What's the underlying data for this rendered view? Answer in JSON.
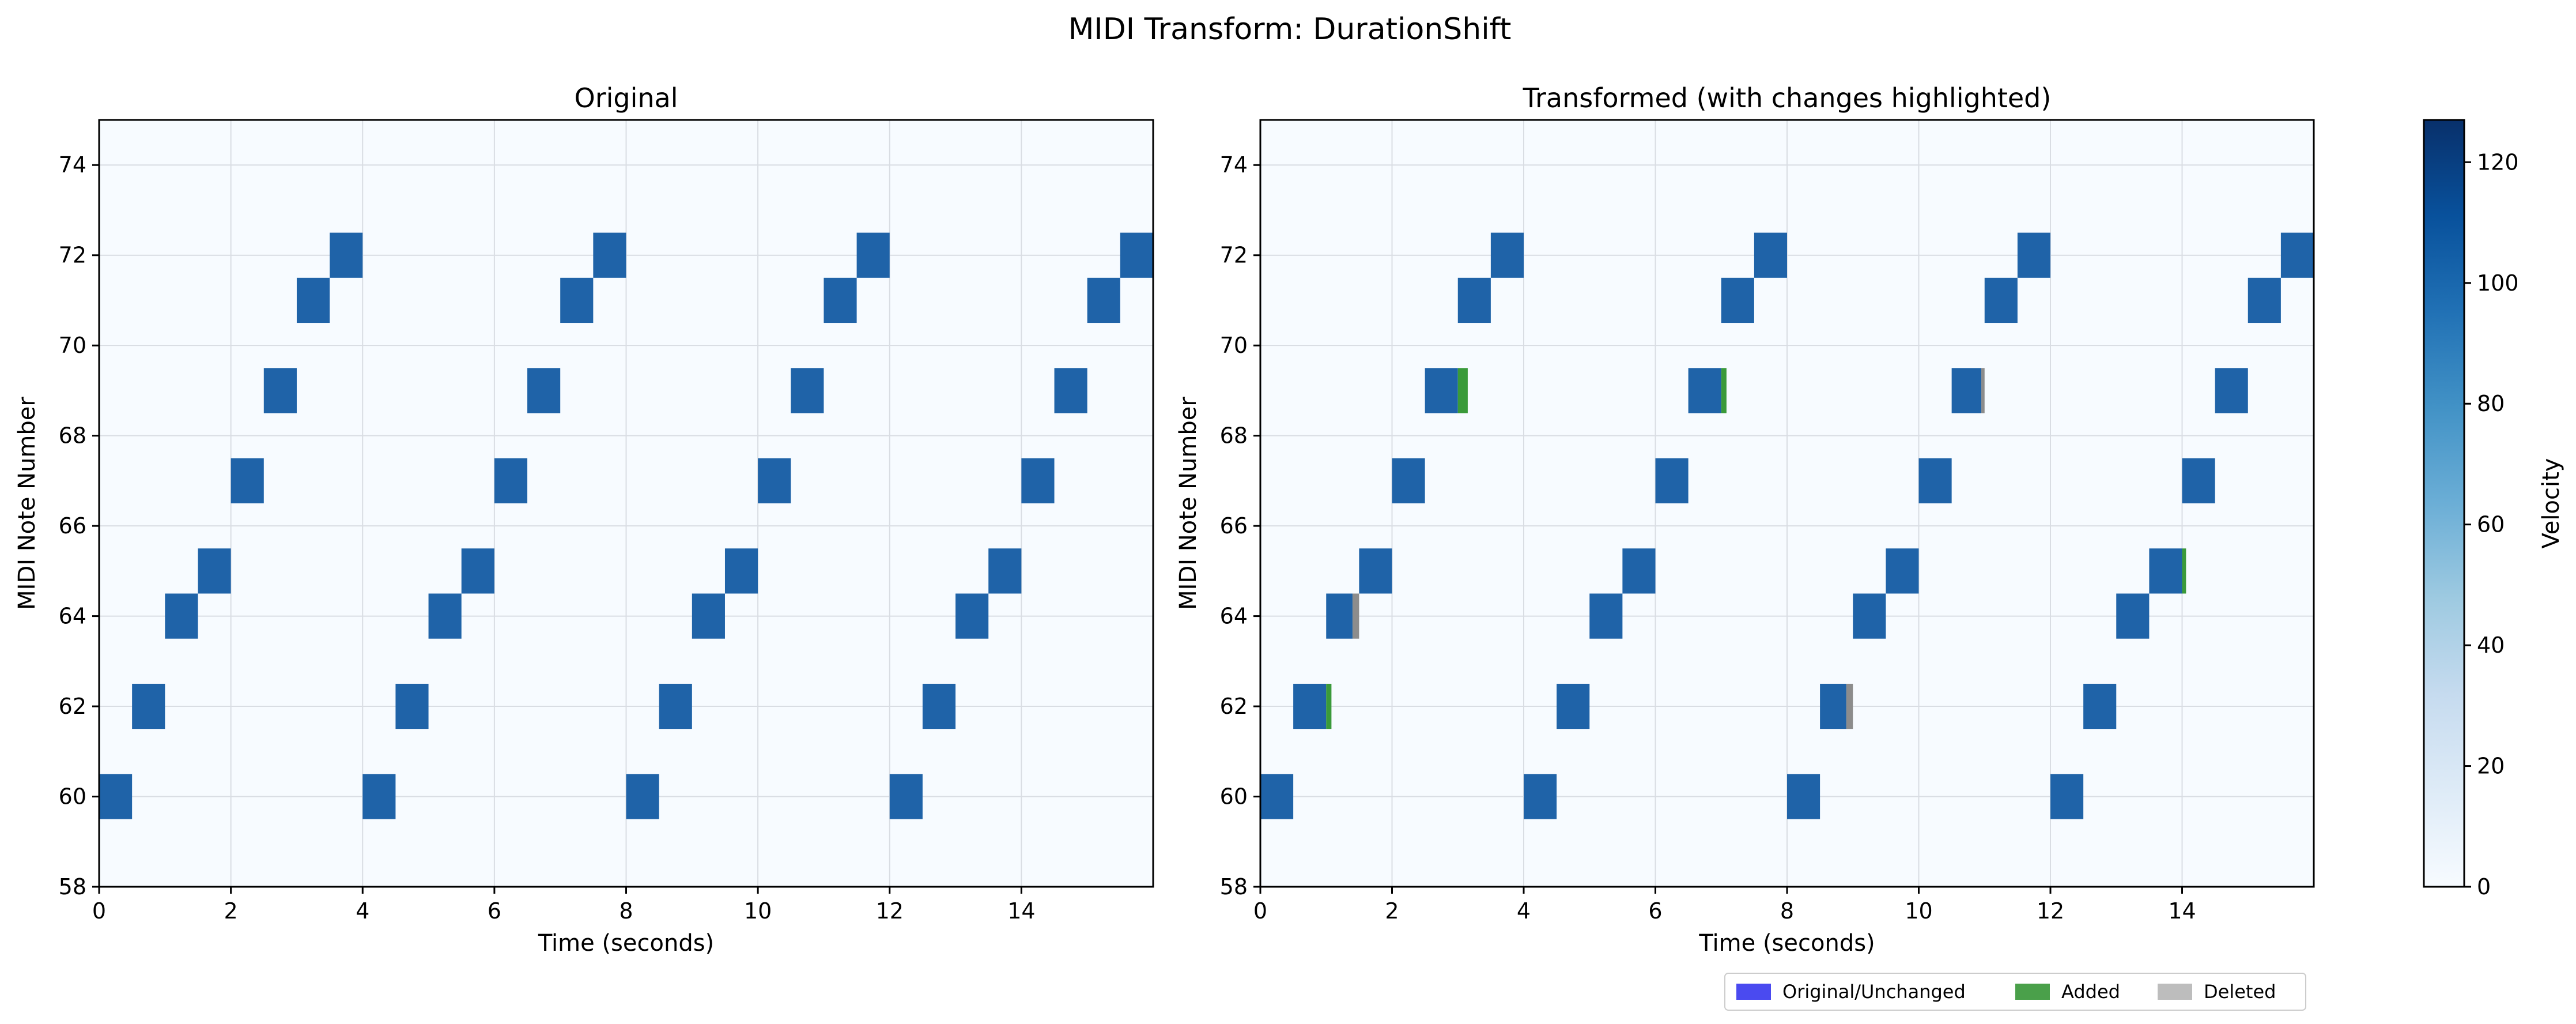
{
  "title": "MIDI Transform: DurationShift",
  "colors": {
    "background": "#f7fbff",
    "note": "#1f63a8",
    "added": "#3a9a3a",
    "deleted": "#8c8c8c",
    "legend_unchanged": "#4a4af0",
    "legend_added": "#4aa04a",
    "legend_deleted": "#bdbdbd",
    "grid": "#d9dde3",
    "colorbar": [
      "#f7fbff",
      "#deebf7",
      "#c6dbef",
      "#9ecae1",
      "#6baed6",
      "#4292c6",
      "#2171b5",
      "#08519c",
      "#08306b"
    ]
  },
  "chart_data": [
    {
      "type": "heatmap",
      "title": "Original",
      "xlabel": "Time (seconds)",
      "ylabel": "MIDI Note Number",
      "xlim": [
        0,
        16
      ],
      "ylim": [
        58,
        75
      ],
      "xticks": [
        "0",
        "2",
        "4",
        "6",
        "8",
        "10",
        "12",
        "14"
      ],
      "yticks": [
        "58",
        "60",
        "62",
        "64",
        "66",
        "68",
        "70",
        "72",
        "74"
      ],
      "grid": true,
      "notes": [
        {
          "pitch": 60,
          "start": 0.0,
          "end": 0.5,
          "velocity": 100
        },
        {
          "pitch": 62,
          "start": 0.5,
          "end": 1.0,
          "velocity": 100
        },
        {
          "pitch": 64,
          "start": 1.0,
          "end": 1.5,
          "velocity": 100
        },
        {
          "pitch": 65,
          "start": 1.5,
          "end": 2.0,
          "velocity": 100
        },
        {
          "pitch": 67,
          "start": 2.0,
          "end": 2.5,
          "velocity": 100
        },
        {
          "pitch": 69,
          "start": 2.5,
          "end": 3.0,
          "velocity": 100
        },
        {
          "pitch": 71,
          "start": 3.0,
          "end": 3.5,
          "velocity": 100
        },
        {
          "pitch": 72,
          "start": 3.5,
          "end": 4.0,
          "velocity": 100
        },
        {
          "pitch": 60,
          "start": 4.0,
          "end": 4.5,
          "velocity": 100
        },
        {
          "pitch": 62,
          "start": 4.5,
          "end": 5.0,
          "velocity": 100
        },
        {
          "pitch": 64,
          "start": 5.0,
          "end": 5.5,
          "velocity": 100
        },
        {
          "pitch": 65,
          "start": 5.5,
          "end": 6.0,
          "velocity": 100
        },
        {
          "pitch": 67,
          "start": 6.0,
          "end": 6.5,
          "velocity": 100
        },
        {
          "pitch": 69,
          "start": 6.5,
          "end": 7.0,
          "velocity": 100
        },
        {
          "pitch": 71,
          "start": 7.0,
          "end": 7.5,
          "velocity": 100
        },
        {
          "pitch": 72,
          "start": 7.5,
          "end": 8.0,
          "velocity": 100
        },
        {
          "pitch": 60,
          "start": 8.0,
          "end": 8.5,
          "velocity": 100
        },
        {
          "pitch": 62,
          "start": 8.5,
          "end": 9.0,
          "velocity": 100
        },
        {
          "pitch": 64,
          "start": 9.0,
          "end": 9.5,
          "velocity": 100
        },
        {
          "pitch": 65,
          "start": 9.5,
          "end": 10.0,
          "velocity": 100
        },
        {
          "pitch": 67,
          "start": 10.0,
          "end": 10.5,
          "velocity": 100
        },
        {
          "pitch": 69,
          "start": 10.5,
          "end": 11.0,
          "velocity": 100
        },
        {
          "pitch": 71,
          "start": 11.0,
          "end": 11.5,
          "velocity": 100
        },
        {
          "pitch": 72,
          "start": 11.5,
          "end": 12.0,
          "velocity": 100
        },
        {
          "pitch": 60,
          "start": 12.0,
          "end": 12.5,
          "velocity": 100
        },
        {
          "pitch": 62,
          "start": 12.5,
          "end": 13.0,
          "velocity": 100
        },
        {
          "pitch": 64,
          "start": 13.0,
          "end": 13.5,
          "velocity": 100
        },
        {
          "pitch": 65,
          "start": 13.5,
          "end": 14.0,
          "velocity": 100
        },
        {
          "pitch": 67,
          "start": 14.0,
          "end": 14.5,
          "velocity": 100
        },
        {
          "pitch": 69,
          "start": 14.5,
          "end": 15.0,
          "velocity": 100
        },
        {
          "pitch": 71,
          "start": 15.0,
          "end": 15.5,
          "velocity": 100
        },
        {
          "pitch": 72,
          "start": 15.5,
          "end": 16.0,
          "velocity": 100
        }
      ]
    },
    {
      "type": "heatmap",
      "title": "Transformed (with changes highlighted)",
      "xlabel": "Time (seconds)",
      "ylabel": "MIDI Note Number",
      "xlim": [
        0,
        16
      ],
      "ylim": [
        58,
        75
      ],
      "xticks": [
        "0",
        "2",
        "4",
        "6",
        "8",
        "10",
        "12",
        "14"
      ],
      "yticks": [
        "58",
        "60",
        "62",
        "64",
        "66",
        "68",
        "70",
        "72",
        "74"
      ],
      "grid": true,
      "notes": [
        {
          "pitch": 60,
          "start": 0.0,
          "end": 0.5,
          "velocity": 100
        },
        {
          "pitch": 62,
          "start": 0.5,
          "end": 1.0,
          "velocity": 100
        },
        {
          "pitch": 64,
          "start": 1.0,
          "end": 1.4,
          "velocity": 100
        },
        {
          "pitch": 65,
          "start": 1.5,
          "end": 2.0,
          "velocity": 100
        },
        {
          "pitch": 67,
          "start": 2.0,
          "end": 2.5,
          "velocity": 100
        },
        {
          "pitch": 69,
          "start": 2.5,
          "end": 3.0,
          "velocity": 100
        },
        {
          "pitch": 71,
          "start": 3.0,
          "end": 3.5,
          "velocity": 100
        },
        {
          "pitch": 72,
          "start": 3.5,
          "end": 4.0,
          "velocity": 100
        },
        {
          "pitch": 60,
          "start": 4.0,
          "end": 4.5,
          "velocity": 100
        },
        {
          "pitch": 62,
          "start": 4.5,
          "end": 5.0,
          "velocity": 100
        },
        {
          "pitch": 64,
          "start": 5.0,
          "end": 5.5,
          "velocity": 100
        },
        {
          "pitch": 65,
          "start": 5.5,
          "end": 6.0,
          "velocity": 100
        },
        {
          "pitch": 67,
          "start": 6.0,
          "end": 6.5,
          "velocity": 100
        },
        {
          "pitch": 69,
          "start": 6.5,
          "end": 7.0,
          "velocity": 100
        },
        {
          "pitch": 71,
          "start": 7.0,
          "end": 7.5,
          "velocity": 100
        },
        {
          "pitch": 72,
          "start": 7.5,
          "end": 8.0,
          "velocity": 100
        },
        {
          "pitch": 60,
          "start": 8.0,
          "end": 8.5,
          "velocity": 100
        },
        {
          "pitch": 62,
          "start": 8.5,
          "end": 8.9,
          "velocity": 100
        },
        {
          "pitch": 64,
          "start": 9.0,
          "end": 9.5,
          "velocity": 100
        },
        {
          "pitch": 65,
          "start": 9.5,
          "end": 10.0,
          "velocity": 100
        },
        {
          "pitch": 67,
          "start": 10.0,
          "end": 10.5,
          "velocity": 100
        },
        {
          "pitch": 69,
          "start": 10.5,
          "end": 10.95,
          "velocity": 100
        },
        {
          "pitch": 71,
          "start": 11.0,
          "end": 11.5,
          "velocity": 100
        },
        {
          "pitch": 72,
          "start": 11.5,
          "end": 12.0,
          "velocity": 100
        },
        {
          "pitch": 60,
          "start": 12.0,
          "end": 12.5,
          "velocity": 100
        },
        {
          "pitch": 62,
          "start": 12.5,
          "end": 13.0,
          "velocity": 100
        },
        {
          "pitch": 64,
          "start": 13.0,
          "end": 13.5,
          "velocity": 100
        },
        {
          "pitch": 65,
          "start": 13.5,
          "end": 14.0,
          "velocity": 100
        },
        {
          "pitch": 67,
          "start": 14.0,
          "end": 14.5,
          "velocity": 100
        },
        {
          "pitch": 69,
          "start": 14.5,
          "end": 15.0,
          "velocity": 100
        },
        {
          "pitch": 71,
          "start": 15.0,
          "end": 15.5,
          "velocity": 100
        },
        {
          "pitch": 72,
          "start": 15.5,
          "end": 16.0,
          "velocity": 100
        }
      ],
      "added": [
        {
          "pitch": 62,
          "start": 1.0,
          "end": 1.08
        },
        {
          "pitch": 69,
          "start": 3.0,
          "end": 3.15
        },
        {
          "pitch": 69,
          "start": 7.0,
          "end": 7.08
        },
        {
          "pitch": 65,
          "start": 14.0,
          "end": 14.06
        }
      ],
      "deleted": [
        {
          "pitch": 64,
          "start": 1.4,
          "end": 1.5
        },
        {
          "pitch": 62,
          "start": 8.9,
          "end": 9.0
        },
        {
          "pitch": 69,
          "start": 10.95,
          "end": 11.0
        }
      ],
      "legend": {
        "placement": "bottom-right",
        "items": [
          {
            "label": "Original/Unchanged",
            "color_key": "legend_unchanged"
          },
          {
            "label": "Added",
            "color_key": "legend_added"
          },
          {
            "label": "Deleted",
            "color_key": "legend_deleted"
          }
        ]
      }
    }
  ],
  "colorbar": {
    "label": "Velocity",
    "range": [
      0,
      127
    ],
    "ticks": [
      "0",
      "20",
      "40",
      "60",
      "80",
      "100",
      "120"
    ]
  }
}
